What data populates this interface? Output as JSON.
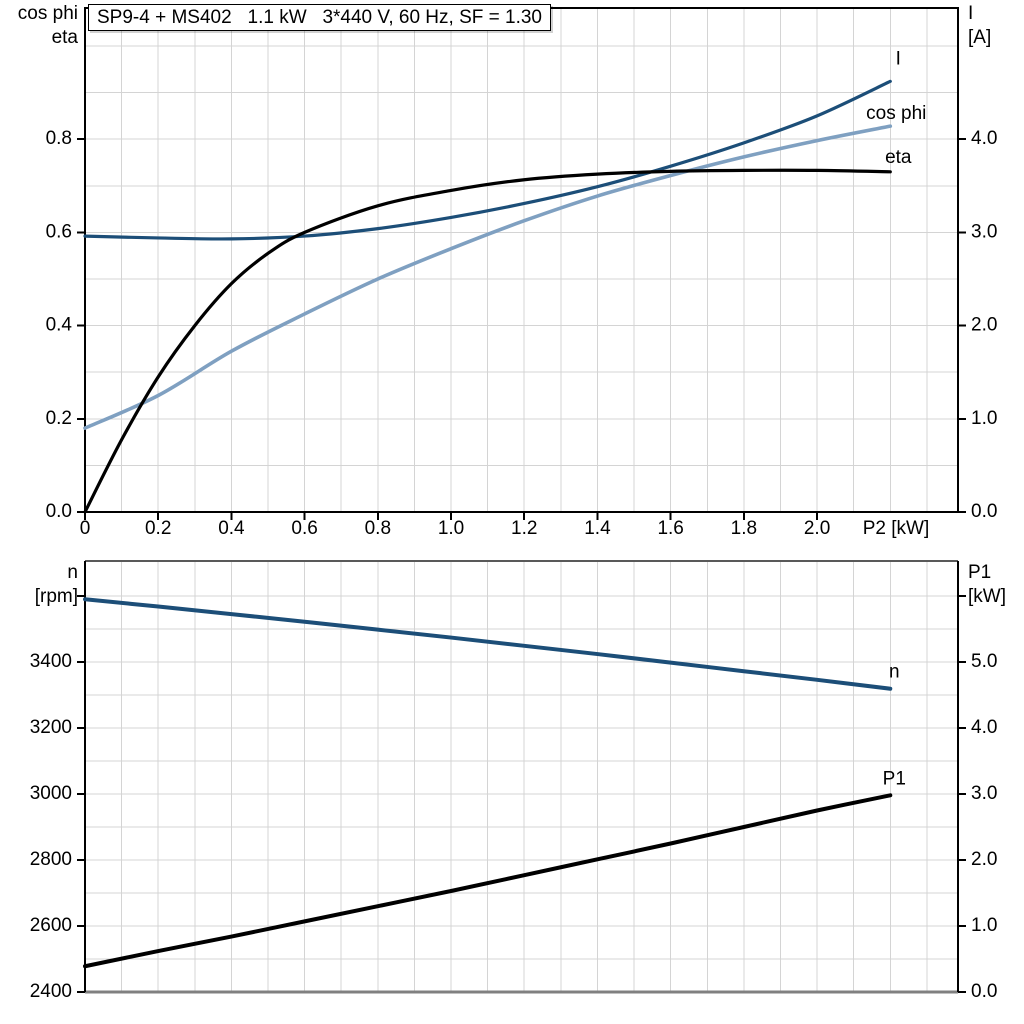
{
  "header": {
    "title": "SP9-4 + MS402   1.1 kW   3*440 V, 60 Hz, SF = 1.30"
  },
  "colors": {
    "curve_dark_blue": "#1C4E78",
    "curve_light_blue": "#7FA0C1",
    "curve_black": "#000000",
    "grid": "#D4D4D4",
    "frame": "#000000",
    "frame_gray_top": "#595959",
    "frame_gray_bottom": "#808080",
    "text": "#000000"
  },
  "chart_data": [
    {
      "type": "line",
      "title": "SP9-4 + MS402   1.1 kW   3*440 V, 60 Hz, SF = 1.30",
      "xlabel": "P2 [kW]",
      "xlim": [
        0,
        2.385
      ],
      "x_ticks": [
        {
          "v": 0,
          "label": "0"
        },
        {
          "v": 0.2,
          "label": "0.2"
        },
        {
          "v": 0.4,
          "label": "0.4"
        },
        {
          "v": 0.6,
          "label": "0.6"
        },
        {
          "v": 0.8,
          "label": "0.8"
        },
        {
          "v": 1.0,
          "label": "1.0"
        },
        {
          "v": 1.2,
          "label": "1.2"
        },
        {
          "v": 1.4,
          "label": "1.4"
        },
        {
          "v": 1.6,
          "label": "1.6"
        },
        {
          "v": 1.8,
          "label": "1.8"
        },
        {
          "v": 2.0,
          "label": "2.0"
        }
      ],
      "left_axis": {
        "corner_lines": [
          "cos phi",
          "eta"
        ],
        "lim": [
          0,
          1.0815
        ],
        "ticks": [
          {
            "v": 0.8,
            "label": "0.8"
          },
          {
            "v": 0.6,
            "label": "0.6"
          },
          {
            "v": 0.4,
            "label": "0.4"
          },
          {
            "v": 0.2,
            "label": "0.2"
          },
          {
            "v": 0.0,
            "label": "0.0"
          }
        ]
      },
      "right_axis": {
        "corner_lines": [
          "I",
          "[A]"
        ],
        "lim": [
          0,
          5.407
        ],
        "ticks": [
          {
            "v": 4.0,
            "label": "4.0"
          },
          {
            "v": 3.0,
            "label": "3.0"
          },
          {
            "v": 2.0,
            "label": "2.0"
          },
          {
            "v": 1.0,
            "label": "1.0"
          },
          {
            "v": 0.0,
            "label": "0.0"
          }
        ]
      },
      "grid": {
        "y_axis": "left",
        "y_from": 0.1,
        "y_to": 1.0,
        "y_step": 0.1,
        "x_from": 0.1,
        "x_to": 2.3,
        "x_step": 0.1
      },
      "legend_position": "curve-end-labels",
      "series": [
        {
          "name": "I",
          "axis": "right",
          "color_key": "curve_dark_blue",
          "label": "I",
          "label_dx": 8,
          "label_dy": -22,
          "width": 3.2,
          "points": [
            [
              0,
              2.96
            ],
            [
              0.2,
              2.94
            ],
            [
              0.4,
              2.93
            ],
            [
              0.6,
              2.96
            ],
            [
              0.8,
              3.04
            ],
            [
              1.0,
              3.16
            ],
            [
              1.2,
              3.31
            ],
            [
              1.4,
              3.49
            ],
            [
              1.6,
              3.71
            ],
            [
              1.8,
              3.96
            ],
            [
              2.0,
              4.25
            ],
            [
              2.2,
              4.62
            ]
          ]
        },
        {
          "name": "cos phi",
          "axis": "left",
          "color_key": "curve_light_blue",
          "label": "cos phi",
          "label_dx": 6,
          "label_dy": -12,
          "width": 3.6,
          "points": [
            [
              0,
              0.18
            ],
            [
              0.2,
              0.25
            ],
            [
              0.4,
              0.345
            ],
            [
              0.6,
              0.425
            ],
            [
              0.8,
              0.5
            ],
            [
              1.0,
              0.565
            ],
            [
              1.2,
              0.625
            ],
            [
              1.4,
              0.678
            ],
            [
              1.6,
              0.722
            ],
            [
              1.8,
              0.762
            ],
            [
              2.0,
              0.797
            ],
            [
              2.2,
              0.828
            ]
          ]
        },
        {
          "name": "eta",
          "axis": "left",
          "color_key": "curve_black",
          "label": "eta",
          "label_dx": 8,
          "label_dy": -14,
          "width": 3.2,
          "points": [
            [
              0,
              0
            ],
            [
              0.1,
              0.155
            ],
            [
              0.2,
              0.29
            ],
            [
              0.3,
              0.4
            ],
            [
              0.4,
              0.49
            ],
            [
              0.5,
              0.555
            ],
            [
              0.6,
              0.6
            ],
            [
              0.8,
              0.657
            ],
            [
              1.0,
              0.69
            ],
            [
              1.2,
              0.713
            ],
            [
              1.4,
              0.725
            ],
            [
              1.6,
              0.731
            ],
            [
              1.8,
              0.733
            ],
            [
              2.0,
              0.733
            ],
            [
              2.2,
              0.73
            ]
          ]
        }
      ]
    },
    {
      "type": "line",
      "title": "",
      "xlabel": "",
      "xlim": [
        0,
        2.385
      ],
      "x_ticks": [],
      "left_axis": {
        "corner_lines": [
          "n",
          "[rpm]"
        ],
        "lim": [
          2400,
          3706
        ],
        "ticks": [
          {
            "v": 3600,
            "label": ""
          },
          {
            "v": 3400,
            "label": "3400"
          },
          {
            "v": 3200,
            "label": "3200"
          },
          {
            "v": 3000,
            "label": "3000"
          },
          {
            "v": 2800,
            "label": "2800"
          },
          {
            "v": 2600,
            "label": "2600"
          },
          {
            "v": 2400,
            "label": "2400"
          }
        ]
      },
      "right_axis": {
        "corner_lines": [
          "P1",
          "[kW]"
        ],
        "lim": [
          0,
          6.53
        ],
        "ticks": [
          {
            "v": 6.0,
            "label": ""
          },
          {
            "v": 5.0,
            "label": "5.0"
          },
          {
            "v": 4.0,
            "label": "4.0"
          },
          {
            "v": 3.0,
            "label": "3.0"
          },
          {
            "v": 2.0,
            "label": "2.0"
          },
          {
            "v": 1.0,
            "label": "1.0"
          },
          {
            "v": 0.0,
            "label": "0.0"
          }
        ]
      },
      "grid": {
        "y_axis": "right",
        "y_from": 0.5,
        "y_to": 6.0,
        "y_step": 0.5,
        "x_from": 0.1,
        "x_to": 2.3,
        "x_step": 0.1
      },
      "legend_position": "curve-end-labels",
      "series": [
        {
          "name": "n",
          "axis": "left",
          "color_key": "curve_dark_blue",
          "label": "n",
          "label_dx": 4,
          "label_dy": -16,
          "width": 4,
          "points": [
            [
              0,
              3590
            ],
            [
              0.2,
              3568
            ],
            [
              0.4,
              3545
            ],
            [
              0.6,
              3522
            ],
            [
              0.8,
              3498
            ],
            [
              1.0,
              3474
            ],
            [
              1.2,
              3449
            ],
            [
              1.4,
              3424
            ],
            [
              1.6,
              3398
            ],
            [
              1.8,
              3372
            ],
            [
              2.0,
              3346
            ],
            [
              2.2,
              3319
            ]
          ]
        },
        {
          "name": "P1",
          "axis": "right",
          "color_key": "curve_black",
          "label": "P1",
          "label_dx": 4,
          "label_dy": -16,
          "width": 4,
          "points": [
            [
              0,
              0.39
            ],
            [
              0.2,
              0.62
            ],
            [
              0.4,
              0.84
            ],
            [
              0.6,
              1.07
            ],
            [
              0.8,
              1.3
            ],
            [
              1.0,
              1.53
            ],
            [
              1.2,
              1.77
            ],
            [
              1.4,
              2.01
            ],
            [
              1.6,
              2.25
            ],
            [
              1.8,
              2.5
            ],
            [
              2.0,
              2.75
            ],
            [
              2.2,
              2.98
            ]
          ]
        }
      ]
    }
  ]
}
